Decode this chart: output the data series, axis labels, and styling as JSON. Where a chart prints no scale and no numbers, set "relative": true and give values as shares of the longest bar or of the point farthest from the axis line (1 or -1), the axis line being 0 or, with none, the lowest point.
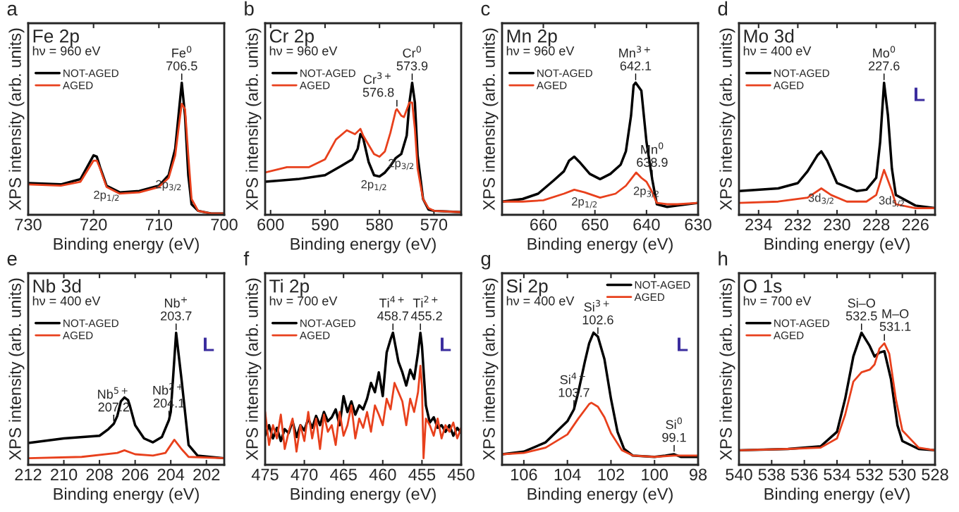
{
  "chart_data": [
    {
      "type": "line",
      "relative": true,
      "title": "Fe 2p",
      "xlabel": "Binding energy (eV)",
      "ylabel": "XPS intensity (arb. units)",
      "xlim": [
        730,
        700
      ],
      "xticks": [
        730,
        720,
        710,
        700
      ],
      "legend": "top left",
      "annotations": [
        "a",
        "hν = 960 eV",
        {
          "text": "Fe$^{0}$\n706.5",
          "x": 706.5,
          "y": 1.0
        },
        {
          "text": "2p$_{1/2}$",
          "x": 718,
          "y": 0.22
        },
        {
          "text": "2p$_{3/2}$",
          "x": 708.5,
          "y": 0.3
        }
      ],
      "series": [
        {
          "name": "NOT-AGED",
          "color": "#000000",
          "x": [
            730,
            725,
            722,
            721,
            720,
            719.5,
            719,
            718,
            716,
            713,
            710,
            708.5,
            707.5,
            707,
            706.5,
            706,
            705.5,
            705,
            704,
            702,
            700
          ],
          "values": [
            0.24,
            0.23,
            0.27,
            0.36,
            0.45,
            0.44,
            0.36,
            0.22,
            0.17,
            0.18,
            0.22,
            0.3,
            0.5,
            0.75,
            1.0,
            0.75,
            0.3,
            0.08,
            0.03,
            0.01,
            0.01
          ]
        },
        {
          "name": "AGED",
          "color": "#e8401c",
          "x": [
            730,
            725,
            722,
            721,
            720,
            719.5,
            719,
            718,
            716,
            713,
            710,
            708.5,
            707.5,
            707,
            706.5,
            706,
            705.5,
            705,
            704,
            702,
            700
          ],
          "values": [
            0.23,
            0.22,
            0.25,
            0.33,
            0.41,
            0.41,
            0.35,
            0.21,
            0.16,
            0.17,
            0.21,
            0.28,
            0.45,
            0.65,
            0.84,
            0.8,
            0.45,
            0.12,
            0.03,
            0.01,
            0.01
          ]
        }
      ]
    },
    {
      "type": "line",
      "relative": true,
      "title": "Cr 2p",
      "xlabel": "Binding energy (eV)",
      "ylabel": "XPS intensity (arb. units)",
      "xlim": [
        601,
        565
      ],
      "xticks": [
        600,
        590,
        580,
        570
      ],
      "legend": "top left",
      "annotations": [
        "b",
        "hν = 960 eV",
        {
          "text": "Cr$^{0}$\n573.9",
          "x": 574,
          "y": 1.0
        },
        {
          "text": "Cr$^{3+}$\n576.8",
          "x": 576.8,
          "y": 0.8
        },
        {
          "text": "2p$_{1/2}$",
          "x": 581,
          "y": 0.3
        },
        {
          "text": "2p$_{3/2}$",
          "x": 576,
          "y": 0.46
        }
      ],
      "series": [
        {
          "name": "NOT-AGED",
          "color": "#000000",
          "x": [
            601,
            595,
            590,
            587,
            585,
            584,
            583.5,
            583,
            582,
            581,
            580,
            579,
            578,
            577,
            576,
            575,
            574.5,
            574,
            573.5,
            573,
            572,
            571,
            570,
            565
          ],
          "values": [
            0.25,
            0.27,
            0.3,
            0.37,
            0.42,
            0.5,
            0.61,
            0.58,
            0.4,
            0.3,
            0.29,
            0.32,
            0.37,
            0.43,
            0.46,
            0.6,
            0.85,
            1.0,
            0.85,
            0.45,
            0.12,
            0.04,
            0.03,
            0.02
          ]
        },
        {
          "name": "AGED",
          "color": "#e8401c",
          "x": [
            601,
            597,
            593,
            590,
            588,
            586,
            584.5,
            583.5,
            583,
            581,
            580,
            579,
            578,
            577,
            576.8,
            576,
            575.5,
            574.5,
            574,
            573.5,
            573,
            572,
            571,
            570,
            565
          ],
          "values": [
            0.32,
            0.36,
            0.36,
            0.42,
            0.57,
            0.64,
            0.61,
            0.65,
            0.6,
            0.46,
            0.44,
            0.48,
            0.62,
            0.79,
            0.8,
            0.75,
            0.74,
            0.85,
            0.85,
            0.65,
            0.35,
            0.12,
            0.05,
            0.03,
            0.02
          ]
        }
      ]
    },
    {
      "type": "line",
      "relative": true,
      "title": "Mn 2p",
      "xlabel": "Binding energy (eV)",
      "ylabel": "XPS intensity (arb. units)",
      "xlim": [
        668,
        630
      ],
      "xticks": [
        660,
        650,
        640,
        630
      ],
      "legend": "top left",
      "annotations": [
        "c",
        "hν = 960 eV",
        {
          "text": "Mn$^{3+}$\n642.1",
          "x": 642.1,
          "y": 1.0
        },
        {
          "text": "Mn$^{0}$\n638.9",
          "x": 638.9,
          "y": 0.27
        },
        {
          "text": "2p$_{1/2}$",
          "x": 652,
          "y": 0.17
        },
        {
          "text": "2p$_{3/2}$",
          "x": 640,
          "y": 0.25
        }
      ],
      "series": [
        {
          "name": "NOT-AGED",
          "color": "#000000",
          "x": [
            668,
            664,
            661,
            658,
            656,
            655,
            654,
            653,
            651,
            649,
            647,
            645,
            644,
            643,
            642.5,
            642.1,
            641,
            640,
            638.9,
            638,
            636,
            634,
            630
          ],
          "values": [
            0.1,
            0.12,
            0.16,
            0.26,
            0.33,
            0.41,
            0.44,
            0.4,
            0.31,
            0.27,
            0.31,
            0.38,
            0.48,
            0.75,
            0.98,
            1.0,
            0.94,
            0.55,
            0.27,
            0.08,
            0.06,
            0.07,
            0.09
          ]
        },
        {
          "name": "AGED",
          "color": "#e8401c",
          "x": [
            668,
            664,
            660,
            656,
            654,
            652,
            649,
            646,
            644,
            642,
            641,
            640,
            639,
            638,
            636,
            634,
            630
          ],
          "values": [
            0.1,
            0.1,
            0.11,
            0.16,
            0.19,
            0.17,
            0.13,
            0.16,
            0.22,
            0.32,
            0.28,
            0.25,
            0.18,
            0.09,
            0.08,
            0.08,
            0.09
          ]
        }
      ]
    },
    {
      "type": "line",
      "relative": true,
      "title": "Mo 3d",
      "xlabel": "Binding energy (eV)",
      "ylabel": "XPS intensity (arb. units)",
      "xlim": [
        235,
        225
      ],
      "xticks": [
        234,
        232,
        230,
        228,
        226
      ],
      "legend": "top left",
      "annotations": [
        "d",
        "hν = 400 eV",
        "L",
        {
          "text": "Mo$^{0}$\n227.6",
          "x": 227.6,
          "y": 1.0
        },
        {
          "text": "3d$_{3/2}$",
          "x": 230.8,
          "y": 0.2
        },
        {
          "text": "3d$_{5/2}$",
          "x": 227.2,
          "y": 0.18
        }
      ],
      "series": [
        {
          "name": "NOT-AGED",
          "color": "#000000",
          "x": [
            235,
            233,
            232,
            231.5,
            231,
            230.8,
            230.5,
            230,
            229,
            228.5,
            228,
            227.8,
            227.6,
            227.4,
            227.2,
            227,
            226,
            225
          ],
          "values": [
            0.18,
            0.2,
            0.24,
            0.33,
            0.45,
            0.48,
            0.41,
            0.24,
            0.18,
            0.19,
            0.28,
            0.55,
            1.0,
            0.75,
            0.35,
            0.15,
            0.07,
            0.05
          ]
        },
        {
          "name": "AGED",
          "color": "#e8401c",
          "x": [
            235,
            233,
            231.5,
            230.8,
            230.3,
            229.5,
            228.5,
            228,
            227.6,
            227.2,
            227,
            226,
            225
          ],
          "values": [
            0.09,
            0.1,
            0.13,
            0.2,
            0.15,
            0.1,
            0.1,
            0.15,
            0.34,
            0.18,
            0.08,
            0.05,
            0.05
          ]
        }
      ]
    },
    {
      "type": "line",
      "relative": true,
      "title": "Nb 3d",
      "xlabel": "Binding energy (eV)",
      "ylabel": "XPS intensity (arb. units)",
      "xlim": [
        212,
        201
      ],
      "xticks": [
        212,
        210,
        208,
        206,
        204,
        202
      ],
      "legend": "top left",
      "annotations": [
        "e",
        "hν = 400 eV",
        "L",
        {
          "text": "Nb$^{+}$\n203.7",
          "x": 203.7,
          "y": 1.0
        },
        {
          "text": "Nb$^{2+}$\n204.1",
          "x": 204.1,
          "y": 0.34
        },
        {
          "text": "Nb$^{5+}$\n207.2",
          "x": 207.2,
          "y": 0.31
        }
      ],
      "series": [
        {
          "name": "NOT-AGED",
          "color": "#000000",
          "x": [
            212,
            210,
            208,
            207.5,
            207.2,
            207,
            206.8,
            206.6,
            206.4,
            206.3,
            206,
            205.5,
            205,
            204.5,
            204.1,
            204,
            203.7,
            203.4,
            203,
            202.5,
            201
          ],
          "values": [
            0.165,
            0.2,
            0.22,
            0.27,
            0.31,
            0.37,
            0.48,
            0.51,
            0.49,
            0.45,
            0.3,
            0.2,
            0.17,
            0.21,
            0.34,
            0.4,
            1.0,
            0.65,
            0.15,
            0.07,
            0.05
          ]
        },
        {
          "name": "AGED",
          "color": "#e8401c",
          "x": [
            212,
            209,
            207,
            206.6,
            206,
            205,
            204.3,
            203.8,
            203.4,
            203,
            201
          ],
          "values": [
            0.05,
            0.06,
            0.09,
            0.11,
            0.08,
            0.07,
            0.09,
            0.19,
            0.12,
            0.06,
            0.05
          ]
        }
      ]
    },
    {
      "type": "line",
      "relative": true,
      "title": "Ti 2p",
      "xlabel": "Binding energy (eV)",
      "ylabel": "XPS intensity (arb. units)",
      "xlim": [
        475,
        450
      ],
      "xticks": [
        475,
        470,
        465,
        460,
        455,
        450
      ],
      "legend": "top left",
      "annotations": [
        "f",
        "hν = 700 eV",
        "L",
        {
          "text": "Ti$^{4+}$\n458.7",
          "x": 458.7,
          "y": 1.0
        },
        {
          "text": "Ti$^{2+}$\n455.2",
          "x": 455.2,
          "y": 1.0
        }
      ],
      "series": [
        {
          "name": "NOT-AGED",
          "color": "#000000",
          "x": [
            475,
            474.5,
            474,
            473.5,
            473,
            472.5,
            472,
            471.5,
            471,
            470.5,
            470,
            469.5,
            469,
            468.5,
            468,
            467.5,
            467,
            466.5,
            466,
            465.5,
            465,
            464.5,
            464,
            463.5,
            463,
            462.5,
            462,
            461.5,
            461,
            460.5,
            460,
            459.5,
            459,
            458.7,
            458,
            457.5,
            457,
            456.5,
            456,
            455.5,
            455.2,
            455,
            454.5,
            454,
            453.5,
            453,
            452.5,
            452,
            451.5,
            451,
            450.5,
            450
          ],
          "values": [
            0.22,
            0.3,
            0.2,
            0.28,
            0.18,
            0.27,
            0.24,
            0.33,
            0.21,
            0.3,
            0.26,
            0.35,
            0.28,
            0.37,
            0.3,
            0.4,
            0.33,
            0.36,
            0.42,
            0.3,
            0.52,
            0.4,
            0.48,
            0.38,
            0.45,
            0.42,
            0.5,
            0.62,
            0.55,
            0.7,
            0.52,
            0.85,
            0.95,
            1.0,
            0.78,
            0.7,
            0.6,
            0.72,
            0.65,
            0.85,
            1.0,
            0.9,
            0.45,
            0.32,
            0.36,
            0.28,
            0.3,
            0.25,
            0.3,
            0.22,
            0.28,
            0.24
          ]
        },
        {
          "name": "AGED",
          "color": "#e8401c",
          "x": [
            475,
            474.5,
            474,
            473.5,
            473,
            472.5,
            472,
            471.5,
            471,
            470.5,
            470,
            469.5,
            469,
            468.5,
            468,
            467.5,
            467,
            466.5,
            466,
            465.5,
            465,
            464.5,
            464,
            463.5,
            463,
            462.5,
            462,
            461.5,
            461,
            460.5,
            460,
            459.5,
            459,
            458.5,
            458,
            457.5,
            457,
            456.5,
            456,
            455.5,
            455.2,
            455,
            454.8,
            454.5,
            454,
            453.5,
            453,
            452.5,
            452,
            451.5,
            451,
            450.5,
            450
          ],
          "values": [
            0.4,
            0.15,
            0.3,
            0.2,
            0.38,
            0.12,
            0.25,
            0.35,
            0.1,
            0.3,
            0.18,
            0.4,
            0.2,
            0.35,
            0.12,
            0.38,
            0.25,
            0.3,
            0.15,
            0.4,
            0.22,
            0.3,
            0.45,
            0.2,
            0.35,
            0.28,
            0.4,
            0.25,
            0.45,
            0.38,
            0.3,
            0.5,
            0.42,
            0.62,
            0.55,
            0.48,
            0.3,
            0.5,
            0.4,
            0.55,
            0.75,
            0.6,
            0.05,
            0.35,
            0.3,
            0.22,
            0.35,
            0.2,
            0.3,
            0.25,
            0.32,
            0.2,
            0.28
          ]
        }
      ]
    },
    {
      "type": "line",
      "relative": true,
      "title": "Si 2p",
      "xlabel": "Binding energy (eV)",
      "ylabel": "XPS intensity (arb. units)",
      "xlim": [
        107,
        98
      ],
      "xticks": [
        106,
        104,
        102,
        100,
        98
      ],
      "legend": "top right",
      "annotations": [
        "g",
        "hν = 400 eV",
        "L",
        {
          "text": "Si$^{3+}$\n102.6",
          "x": 102.6,
          "y": 0.97
        },
        {
          "text": "Si$^{4+}$\n103.7",
          "x": 103.7,
          "y": 0.42
        },
        {
          "text": "Si$^{0}$\n99.1",
          "x": 99.1,
          "y": 0.08
        }
      ],
      "series": [
        {
          "name": "NOT-AGED",
          "color": "#000000",
          "x": [
            107,
            106,
            105,
            104,
            103.7,
            103.5,
            103.2,
            103,
            102.8,
            102.6,
            102.3,
            102,
            101.7,
            101.4,
            101,
            100,
            99.5,
            99.1,
            98.8,
            98
          ],
          "values": [
            0.08,
            0.1,
            0.17,
            0.33,
            0.42,
            0.55,
            0.78,
            0.92,
            1.0,
            0.97,
            0.8,
            0.5,
            0.25,
            0.12,
            0.07,
            0.06,
            0.07,
            0.08,
            0.06,
            0.06
          ]
        },
        {
          "name": "AGED",
          "color": "#e8401c",
          "x": [
            107,
            106,
            105,
            104,
            103.5,
            103,
            102.9,
            102.6,
            102.3,
            102,
            101.5,
            101,
            100,
            99.1,
            98
          ],
          "values": [
            0.08,
            0.09,
            0.13,
            0.23,
            0.35,
            0.46,
            0.47,
            0.44,
            0.36,
            0.24,
            0.11,
            0.07,
            0.06,
            0.07,
            0.07
          ]
        }
      ]
    },
    {
      "type": "line",
      "relative": true,
      "title": "O 1s",
      "xlabel": "Binding energy (eV)",
      "ylabel": "XPS intensity (arb. units)",
      "xlim": [
        540,
        528
      ],
      "xticks": [
        540,
        538,
        536,
        534,
        532,
        530,
        528
      ],
      "legend": "top left",
      "annotations": [
        "h",
        "hν = 700 eV",
        {
          "text": "Si–O\n532.5",
          "x": 532.5,
          "y": 1.0
        },
        {
          "text": "M–O\n531.1",
          "x": 531.1,
          "y": 0.92
        }
      ],
      "series": [
        {
          "name": "NOT-AGED",
          "color": "#000000",
          "x": [
            540,
            537,
            535,
            534,
            533.5,
            533,
            532.5,
            532,
            531.7,
            531.4,
            531.1,
            530.7,
            530.3,
            530,
            529,
            528
          ],
          "values": [
            0.11,
            0.12,
            0.14,
            0.25,
            0.5,
            0.82,
            1.0,
            0.9,
            0.82,
            0.85,
            0.86,
            0.65,
            0.3,
            0.18,
            0.12,
            0.11
          ]
        },
        {
          "name": "AGED",
          "color": "#e8401c",
          "x": [
            540,
            537,
            535,
            534,
            533.5,
            533,
            532.5,
            532,
            531.7,
            531.4,
            531.1,
            530.8,
            530.4,
            530,
            529,
            528
          ],
          "values": [
            0.11,
            0.12,
            0.13,
            0.2,
            0.38,
            0.63,
            0.7,
            0.72,
            0.76,
            0.88,
            0.92,
            0.84,
            0.5,
            0.26,
            0.13,
            0.11
          ]
        }
      ]
    }
  ]
}
